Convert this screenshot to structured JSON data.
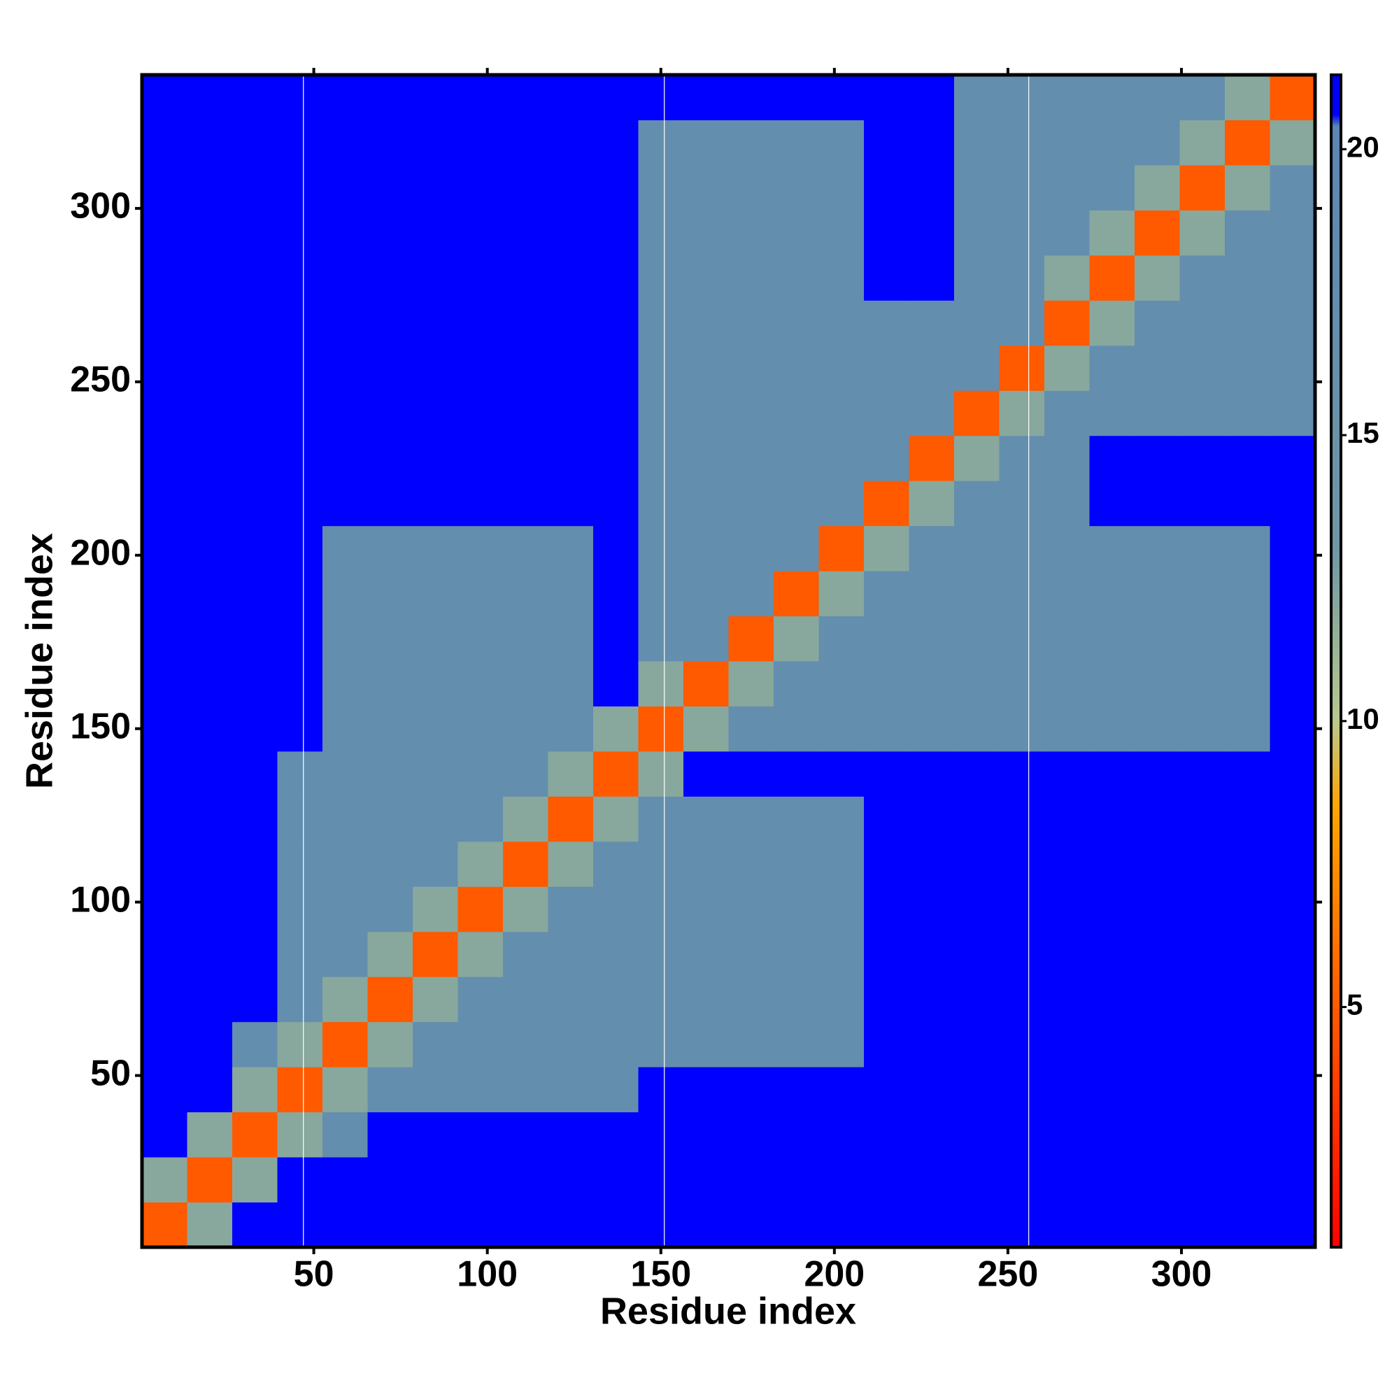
{
  "chart_data": {
    "type": "heatmap",
    "x_label": "Residue index",
    "y_label": "Residue index",
    "bins": [
      0.5,
      13.5,
      26.5,
      39.5,
      52.5,
      65.5,
      78.5,
      91.5,
      104.5,
      117.5,
      130.5,
      143.5,
      156.5,
      169.5,
      182.5,
      195.5,
      208.5,
      221.5,
      234.5,
      247.5,
      260.5,
      273.5,
      286.5,
      299.5,
      312.5,
      325.5,
      338.5
    ],
    "xlim": [
      0.5,
      338.5
    ],
    "ylim": [
      0.5,
      338.5
    ],
    "xticks": [
      50,
      100,
      150,
      200,
      250,
      300
    ],
    "yticks": [
      50,
      100,
      150,
      200,
      250,
      300
    ],
    "zlim": [
      0.8,
      21.3
    ],
    "zticks": [
      5,
      10,
      15,
      20
    ],
    "colorscale": [
      [
        0.8,
        "#ff0000"
      ],
      [
        5,
        "#ff5a00"
      ],
      [
        8.5,
        "#ffa500"
      ],
      [
        10,
        "#b9c98c"
      ],
      [
        13,
        "#6f97a6"
      ],
      [
        20.4,
        "#5a86b4"
      ],
      [
        20.6,
        "#0000ff"
      ]
    ],
    "vlines": [
      47,
      151,
      256
    ],
    "z": [
      [
        5,
        12,
        21,
        21,
        21,
        21,
        21,
        21,
        21,
        21,
        21,
        21,
        21,
        21,
        21,
        21,
        21,
        21,
        21,
        21,
        21,
        21,
        21,
        21,
        21,
        21
      ],
      [
        12,
        5,
        12,
        21,
        21,
        21,
        21,
        21,
        21,
        21,
        21,
        21,
        21,
        21,
        21,
        21,
        21,
        21,
        21,
        21,
        21,
        21,
        21,
        21,
        21,
        21
      ],
      [
        21,
        12,
        5,
        12,
        17,
        21,
        21,
        21,
        21,
        21,
        21,
        21,
        21,
        21,
        21,
        21,
        21,
        21,
        21,
        21,
        21,
        21,
        21,
        21,
        21,
        21
      ],
      [
        21,
        21,
        12,
        5,
        12,
        17,
        17,
        17,
        17,
        17,
        17,
        21,
        21,
        21,
        21,
        21,
        21,
        21,
        21,
        21,
        21,
        21,
        21,
        21,
        21,
        21
      ],
      [
        21,
        21,
        17,
        12,
        5,
        12,
        17,
        17,
        17,
        17,
        17,
        17,
        17,
        17,
        17,
        17,
        21,
        21,
        21,
        21,
        21,
        21,
        21,
        21,
        21,
        21
      ],
      [
        21,
        21,
        21,
        17,
        12,
        5,
        12,
        17,
        17,
        17,
        17,
        17,
        17,
        17,
        17,
        17,
        21,
        21,
        21,
        21,
        21,
        21,
        21,
        21,
        21,
        21
      ],
      [
        21,
        21,
        21,
        17,
        17,
        12,
        5,
        12,
        17,
        17,
        17,
        17,
        17,
        17,
        17,
        17,
        21,
        21,
        21,
        21,
        21,
        21,
        21,
        21,
        21,
        21
      ],
      [
        21,
        21,
        21,
        17,
        17,
        17,
        12,
        5,
        12,
        17,
        17,
        17,
        17,
        17,
        17,
        17,
        21,
        21,
        21,
        21,
        21,
        21,
        21,
        21,
        21,
        21
      ],
      [
        21,
        21,
        21,
        17,
        17,
        17,
        17,
        12,
        5,
        12,
        17,
        17,
        17,
        17,
        17,
        17,
        21,
        21,
        21,
        21,
        21,
        21,
        21,
        21,
        21,
        21
      ],
      [
        21,
        21,
        21,
        17,
        17,
        17,
        17,
        17,
        12,
        5,
        12,
        17,
        17,
        17,
        17,
        17,
        21,
        21,
        21,
        21,
        21,
        21,
        21,
        21,
        21,
        21
      ],
      [
        21,
        21,
        21,
        17,
        17,
        17,
        17,
        17,
        17,
        12,
        5,
        12,
        21,
        21,
        21,
        21,
        21,
        21,
        21,
        21,
        21,
        21,
        21,
        21,
        21,
        21
      ],
      [
        21,
        21,
        21,
        21,
        17,
        17,
        17,
        17,
        17,
        17,
        12,
        5,
        12,
        17,
        17,
        17,
        17,
        17,
        17,
        17,
        17,
        17,
        17,
        17,
        17,
        21
      ],
      [
        21,
        21,
        21,
        21,
        17,
        17,
        17,
        17,
        17,
        17,
        21,
        12,
        5,
        12,
        17,
        17,
        17,
        17,
        17,
        17,
        17,
        17,
        17,
        17,
        17,
        21
      ],
      [
        21,
        21,
        21,
        21,
        17,
        17,
        17,
        17,
        17,
        17,
        21,
        17,
        17,
        5,
        12,
        17,
        17,
        17,
        17,
        17,
        17,
        17,
        17,
        17,
        17,
        21
      ],
      [
        21,
        21,
        21,
        21,
        17,
        17,
        17,
        17,
        17,
        17,
        21,
        17,
        17,
        17,
        5,
        12,
        17,
        17,
        17,
        17,
        17,
        17,
        17,
        17,
        17,
        21
      ],
      [
        21,
        21,
        21,
        21,
        17,
        17,
        17,
        17,
        17,
        17,
        21,
        17,
        17,
        17,
        17,
        5,
        12,
        17,
        17,
        17,
        17,
        17,
        17,
        17,
        17,
        21
      ],
      [
        21,
        21,
        21,
        21,
        21,
        21,
        21,
        21,
        21,
        21,
        21,
        17,
        17,
        17,
        17,
        17,
        5,
        12,
        17,
        17,
        17,
        21,
        21,
        21,
        21,
        21
      ],
      [
        21,
        21,
        21,
        21,
        21,
        21,
        21,
        21,
        21,
        21,
        21,
        17,
        17,
        17,
        17,
        17,
        17,
        5,
        12,
        17,
        17,
        21,
        21,
        21,
        21,
        21
      ],
      [
        21,
        21,
        21,
        21,
        21,
        21,
        21,
        21,
        21,
        21,
        21,
        17,
        17,
        17,
        17,
        17,
        17,
        17,
        5,
        12,
        17,
        17,
        17,
        17,
        17,
        17
      ],
      [
        21,
        21,
        21,
        21,
        21,
        21,
        21,
        21,
        21,
        21,
        21,
        17,
        17,
        17,
        17,
        17,
        17,
        17,
        17,
        5,
        12,
        17,
        17,
        17,
        17,
        17
      ],
      [
        21,
        21,
        21,
        21,
        21,
        21,
        21,
        21,
        21,
        21,
        21,
        17,
        17,
        17,
        17,
        17,
        17,
        17,
        17,
        17,
        5,
        12,
        17,
        17,
        17,
        17
      ],
      [
        21,
        21,
        21,
        21,
        21,
        21,
        21,
        21,
        21,
        21,
        21,
        17,
        17,
        17,
        17,
        17,
        21,
        21,
        17,
        17,
        12,
        5,
        12,
        17,
        17,
        17
      ],
      [
        21,
        21,
        21,
        21,
        21,
        21,
        21,
        21,
        21,
        21,
        21,
        17,
        17,
        17,
        17,
        17,
        21,
        21,
        17,
        17,
        17,
        12,
        5,
        12,
        17,
        17
      ],
      [
        21,
        21,
        21,
        21,
        21,
        21,
        21,
        21,
        21,
        21,
        21,
        17,
        17,
        17,
        17,
        17,
        21,
        21,
        17,
        17,
        17,
        17,
        12,
        5,
        12,
        17
      ],
      [
        21,
        21,
        21,
        21,
        21,
        21,
        21,
        21,
        21,
        21,
        21,
        17,
        17,
        17,
        17,
        17,
        21,
        21,
        17,
        17,
        17,
        17,
        17,
        12,
        5,
        12
      ],
      [
        21,
        21,
        21,
        21,
        21,
        21,
        21,
        21,
        21,
        21,
        21,
        21,
        21,
        21,
        21,
        21,
        21,
        21,
        17,
        17,
        17,
        17,
        17,
        17,
        12,
        5
      ]
    ]
  }
}
